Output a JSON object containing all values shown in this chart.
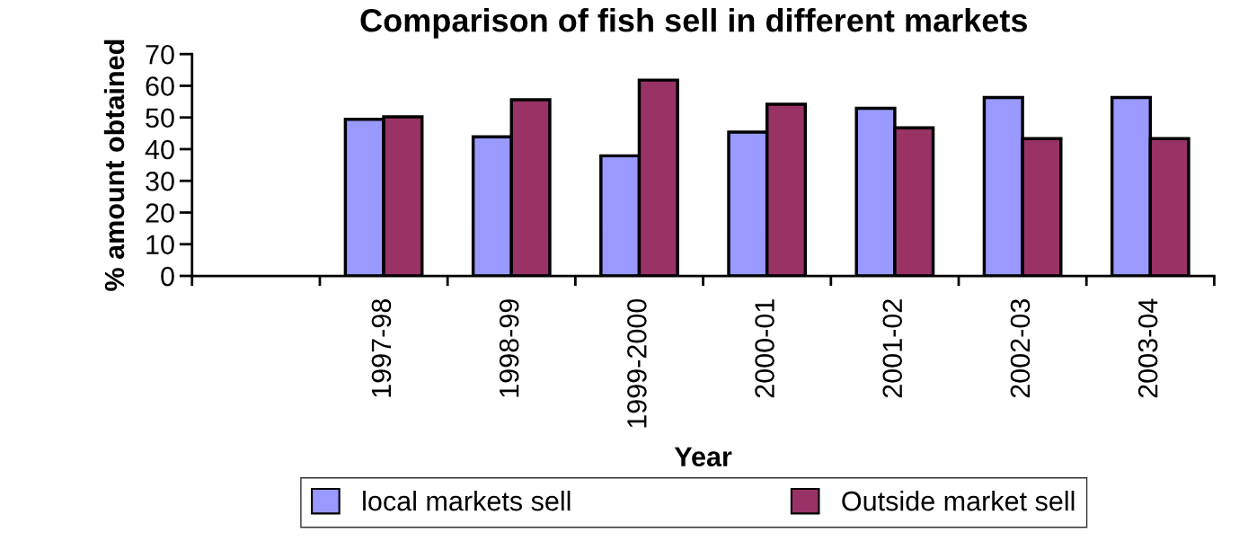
{
  "chart_data": {
    "type": "bar",
    "title": "Comparison of fish sell in different markets",
    "xlabel": "Year",
    "ylabel": "% amount obtained",
    "categories": [
      null,
      "1997-98",
      "1998-99",
      "1999-2000",
      "2000-01",
      "2001-02",
      "2002-03",
      "2003-04"
    ],
    "series": [
      {
        "name": "local markets sell",
        "color": "#9999ff",
        "values": [
          null,
          49.4,
          43.9,
          37.9,
          45.4,
          52.9,
          56.3,
          56.3
        ]
      },
      {
        "name": "Outside market sell",
        "color": "#993366",
        "values": [
          null,
          50.2,
          55.6,
          61.8,
          54.2,
          46.7,
          43.3,
          43.3
        ]
      }
    ],
    "ylim": [
      0,
      70
    ],
    "yticks": [
      0,
      10,
      20,
      30,
      40,
      50,
      60,
      70
    ],
    "grid": false,
    "legend": "bottom"
  }
}
